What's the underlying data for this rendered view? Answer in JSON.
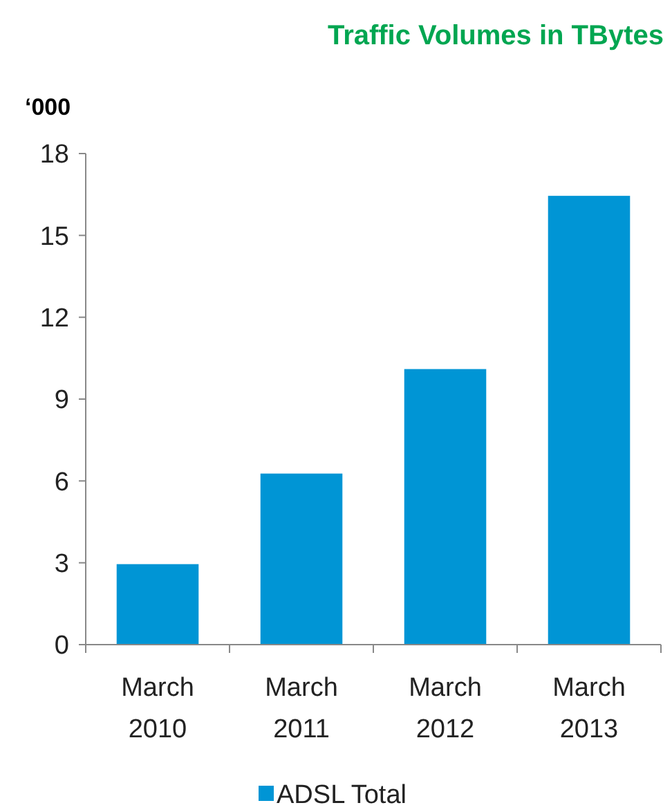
{
  "chart_data": {
    "type": "bar",
    "title": "Traffic Volumes in TBytes",
    "ylabel": "‘000",
    "categories": [
      "March\n2010",
      "March\n2011",
      "March\n2012",
      "March\n2013"
    ],
    "series": [
      {
        "name": "ADSL Total",
        "color": "#0095d5",
        "values": [
          2.95,
          6.27,
          10.1,
          16.45
        ]
      }
    ],
    "ylim": [
      0,
      18
    ],
    "yticks": [
      0,
      3,
      6,
      9,
      12,
      15,
      18
    ],
    "grid": false,
    "legend": "bottom"
  }
}
